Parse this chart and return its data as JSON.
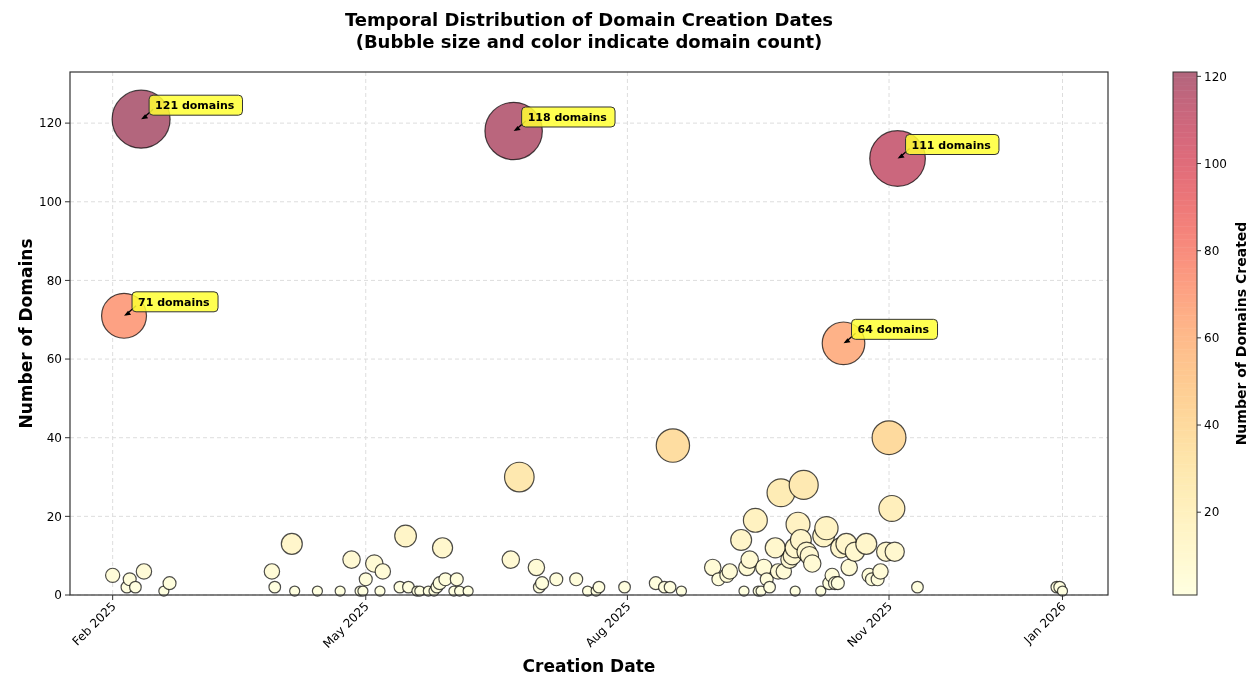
{
  "chart_data": {
    "type": "bubble",
    "title": "Temporal Distribution of Domain Creation Dates",
    "subtitle": "(Bubble size and color indicate domain count)",
    "xlabel": "Creation Date",
    "ylabel": "Number of Domains",
    "clabel": "Number of Domains Created",
    "x": [
      "2025-02-01",
      "2025-02-05",
      "2025-02-06",
      "2025-02-07",
      "2025-02-09",
      "2025-02-11",
      "2025-02-12",
      "2025-02-19",
      "2025-02-21",
      "2025-03-29",
      "2025-03-30",
      "2025-04-05",
      "2025-04-06",
      "2025-04-14",
      "2025-04-22",
      "2025-04-26",
      "2025-04-29",
      "2025-04-30",
      "2025-05-01",
      "2025-05-04",
      "2025-05-06",
      "2025-05-07",
      "2025-05-13",
      "2025-05-15",
      "2025-05-16",
      "2025-05-19",
      "2025-05-20",
      "2025-05-23",
      "2025-05-25",
      "2025-05-26",
      "2025-05-27",
      "2025-05-28",
      "2025-05-29",
      "2025-06-01",
      "2025-06-02",
      "2025-06-03",
      "2025-06-06",
      "2025-06-21",
      "2025-06-22",
      "2025-06-24",
      "2025-06-30",
      "2025-07-01",
      "2025-07-02",
      "2025-07-07",
      "2025-07-14",
      "2025-07-18",
      "2025-07-21",
      "2025-07-22",
      "2025-07-31",
      "2025-08-11",
      "2025-08-14",
      "2025-08-16",
      "2025-08-17",
      "2025-08-20",
      "2025-08-31",
      "2025-09-02",
      "2025-09-05",
      "2025-09-06",
      "2025-09-10",
      "2025-09-11",
      "2025-09-12",
      "2025-09-13",
      "2025-09-15",
      "2025-09-16",
      "2025-09-17",
      "2025-09-18",
      "2025-09-19",
      "2025-09-20",
      "2025-09-22",
      "2025-09-23",
      "2025-09-24",
      "2025-09-25",
      "2025-09-27",
      "2025-09-28",
      "2025-09-29",
      "2025-09-29",
      "2025-09-30",
      "2025-10-01",
      "2025-10-02",
      "2025-10-03",
      "2025-10-04",
      "2025-10-05",
      "2025-10-08",
      "2025-10-09",
      "2025-10-10",
      "2025-10-11",
      "2025-10-12",
      "2025-10-13",
      "2025-10-14",
      "2025-10-15",
      "2025-10-16",
      "2025-10-17",
      "2025-10-18",
      "2025-10-20",
      "2025-10-24",
      "2025-10-25",
      "2025-10-26",
      "2025-10-28",
      "2025-10-29",
      "2025-10-31",
      "2025-11-01",
      "2025-11-02",
      "2025-11-03",
      "2025-11-04",
      "2025-11-11",
      "2025-12-30",
      "2025-12-31",
      "2026-01-01"
    ],
    "values": [
      5,
      71,
      2,
      4,
      2,
      121,
      6,
      1,
      3,
      6,
      2,
      13,
      1,
      1,
      1,
      9,
      1,
      1,
      4,
      8,
      1,
      6,
      2,
      15,
      2,
      1,
      1,
      1,
      1,
      2,
      3,
      12,
      4,
      1,
      4,
      1,
      1,
      9,
      118,
      30,
      7,
      2,
      3,
      4,
      4,
      1,
      1,
      2,
      2,
      3,
      2,
      2,
      38,
      1,
      7,
      4,
      5,
      6,
      14,
      1,
      7,
      9,
      19,
      1,
      1,
      7,
      4,
      2,
      12,
      6,
      26,
      6,
      9,
      10,
      1,
      12,
      18,
      14,
      28,
      11,
      10,
      8,
      1,
      15,
      17,
      3,
      5,
      3,
      3,
      12,
      64,
      13,
      7,
      11,
      13,
      5,
      4,
      4,
      6,
      11,
      40,
      22,
      11,
      111,
      2,
      2,
      2,
      1
    ],
    "cvalues": [
      5,
      71,
      2,
      4,
      2,
      121,
      6,
      1,
      3,
      6,
      2,
      13,
      1,
      1,
      1,
      9,
      1,
      1,
      4,
      8,
      1,
      6,
      2,
      15,
      2,
      1,
      1,
      1,
      1,
      2,
      3,
      12,
      4,
      1,
      4,
      1,
      1,
      9,
      118,
      30,
      7,
      2,
      3,
      4,
      4,
      1,
      1,
      2,
      2,
      3,
      2,
      2,
      38,
      1,
      7,
      4,
      5,
      6,
      14,
      1,
      7,
      9,
      19,
      1,
      1,
      7,
      4,
      2,
      12,
      6,
      26,
      6,
      9,
      10,
      1,
      12,
      18,
      14,
      28,
      11,
      10,
      8,
      1,
      15,
      17,
      3,
      5,
      3,
      3,
      12,
      64,
      13,
      7,
      11,
      13,
      5,
      4,
      4,
      6,
      11,
      40,
      22,
      11,
      111,
      2,
      2,
      2,
      1
    ],
    "sizes": [
      0.06,
      0.6,
      0.04,
      0.05,
      0.04,
      1,
      0.07,
      0.03,
      0.05,
      0.07,
      0.04,
      0.13,
      0.03,
      0.03,
      0.03,
      0.09,
      0.03,
      0.03,
      0.05,
      0.09,
      0.03,
      0.07,
      0.04,
      0.14,
      0.04,
      0.03,
      0.03,
      0.03,
      0.03,
      0.04,
      0.05,
      0.12,
      0.05,
      0.03,
      0.05,
      0.03,
      0.03,
      0.09,
      0.98,
      0.26,
      0.08,
      0.04,
      0.05,
      0.05,
      0.05,
      0.03,
      0.03,
      0.04,
      0.04,
      0.05,
      0.04,
      0.04,
      0.33,
      0.03,
      0.08,
      0.05,
      0.06,
      0.07,
      0.13,
      0.03,
      0.08,
      0.09,
      0.17,
      0.03,
      0.03,
      0.08,
      0.05,
      0.04,
      0.12,
      0.07,
      0.23,
      0.07,
      0.09,
      0.1,
      0.03,
      0.12,
      0.17,
      0.13,
      0.25,
      0.11,
      0.1,
      0.09,
      0.03,
      0.14,
      0.16,
      0.05,
      0.06,
      0.05,
      0.05,
      0.12,
      0.54,
      0.13,
      0.08,
      0.11,
      0.13,
      0.06,
      0.05,
      0.05,
      0.07,
      0.11,
      0.34,
      0.2,
      0.11,
      0.92,
      0.04,
      0.04,
      0.04,
      0.03
    ],
    "xlim": [
      "2025-01-17",
      "2026-01-17"
    ],
    "xticks": [
      {
        "value": "2025-02-01",
        "label": "Feb 2025"
      },
      {
        "value": "2025-05-01",
        "label": "May 2025"
      },
      {
        "value": "2025-08-01",
        "label": "Aug 2025"
      },
      {
        "value": "2025-11-01",
        "label": "Nov 2025"
      },
      {
        "value": "2026-01-01",
        "label": "Jan 2026"
      }
    ],
    "ylim": [
      0,
      133
    ],
    "yticks": [
      0,
      20,
      40,
      60,
      80,
      100,
      120
    ],
    "clim": [
      1,
      121
    ],
    "cticks": [
      20,
      40,
      60,
      80,
      100,
      120
    ],
    "grid": true,
    "annotations": [
      {
        "text": "121 domains",
        "x": "2025-02-11",
        "y": 121
      },
      {
        "text": "71 domains",
        "x": "2025-02-05",
        "y": 71
      },
      {
        "text": "118 domains",
        "x": "2025-06-22",
        "y": 118
      },
      {
        "text": "111 domains",
        "x": "2025-11-04",
        "y": 111
      },
      {
        "text": "64 domains",
        "x": "2025-10-16",
        "y": 64
      }
    ]
  }
}
